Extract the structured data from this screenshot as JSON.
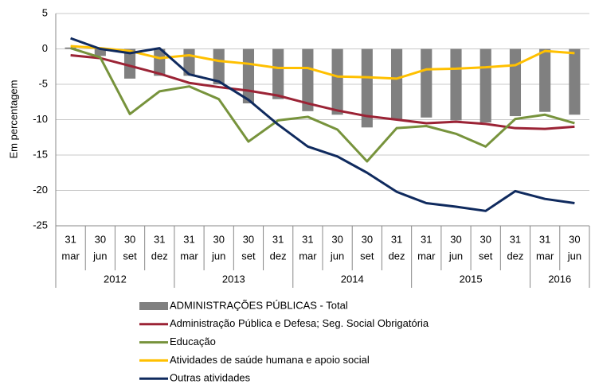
{
  "chart_data": {
    "type": "bar-line",
    "y_label": "Em percentagem",
    "categories": [
      [
        "31",
        "mar"
      ],
      [
        "30",
        "jun"
      ],
      [
        "30",
        "set"
      ],
      [
        "31",
        "dez"
      ],
      [
        "31",
        "mar"
      ],
      [
        "30",
        "jun"
      ],
      [
        "30",
        "set"
      ],
      [
        "31",
        "dez"
      ],
      [
        "31",
        "mar"
      ],
      [
        "30",
        "jun"
      ],
      [
        "30",
        "set"
      ],
      [
        "31",
        "dez"
      ],
      [
        "31",
        "mar"
      ],
      [
        "30",
        "jun"
      ],
      [
        "30",
        "set"
      ],
      [
        "31",
        "dez"
      ],
      [
        "31",
        "mar"
      ],
      [
        "30",
        "jun"
      ]
    ],
    "year_groups": [
      {
        "label": "2012",
        "count": 4
      },
      {
        "label": "2013",
        "count": 4
      },
      {
        "label": "2014",
        "count": 4
      },
      {
        "label": "2015",
        "count": 4
      },
      {
        "label": "2016",
        "count": 2
      }
    ],
    "ylim": [
      -25,
      5
    ],
    "yticks": [
      5,
      0,
      -5,
      -10,
      -15,
      -20,
      -25
    ],
    "grid": true,
    "series": [
      {
        "name": "ADMINISTRAÇÕES PÚBLICAS - Total",
        "kind": "bar",
        "color": "#808080",
        "values": [
          0.2,
          -1.0,
          -4.2,
          -3.8,
          -3.8,
          -5.0,
          -7.7,
          -7.1,
          -8.8,
          -9.3,
          -11.1,
          -10.0,
          -9.7,
          -10.1,
          -10.4,
          -9.5,
          -8.9,
          -9.3
        ]
      },
      {
        "name": "Administração Pública e Defesa; Seg. Social Obrigatória",
        "kind": "line",
        "color": "#9b2335",
        "values": [
          -0.9,
          -1.3,
          -2.4,
          -3.5,
          -4.8,
          -5.4,
          -5.9,
          -6.6,
          -7.7,
          -8.7,
          -9.5,
          -10.0,
          -10.5,
          -10.3,
          -10.6,
          -11.2,
          -11.3,
          -11.0
        ]
      },
      {
        "name": "Educação",
        "kind": "line",
        "color": "#77933c",
        "values": [
          0.1,
          -1.2,
          -9.2,
          -6.0,
          -5.3,
          -7.1,
          -13.1,
          -10.1,
          -9.6,
          -11.4,
          -15.9,
          -11.2,
          -10.9,
          -12.0,
          -13.8,
          -9.9,
          -9.3,
          -10.5
        ]
      },
      {
        "name": "Atividades de saúde humana e apoio social",
        "kind": "line",
        "color": "#ffc000",
        "values": [
          0.4,
          0.1,
          -0.3,
          -1.3,
          -0.9,
          -1.7,
          -2.1,
          -2.7,
          -2.7,
          -3.9,
          -4.0,
          -4.2,
          -2.9,
          -2.8,
          -2.6,
          -2.3,
          -0.3,
          -0.6
        ]
      },
      {
        "name": "Outras atividades",
        "kind": "line",
        "color": "#0f2a5e",
        "values": [
          1.5,
          0.0,
          -0.6,
          0.1,
          -3.6,
          -4.6,
          -7.2,
          -10.7,
          -13.8,
          -15.2,
          -17.5,
          -20.2,
          -21.8,
          -22.3,
          -22.9,
          -20.1,
          -21.2,
          -21.8
        ]
      }
    ]
  }
}
